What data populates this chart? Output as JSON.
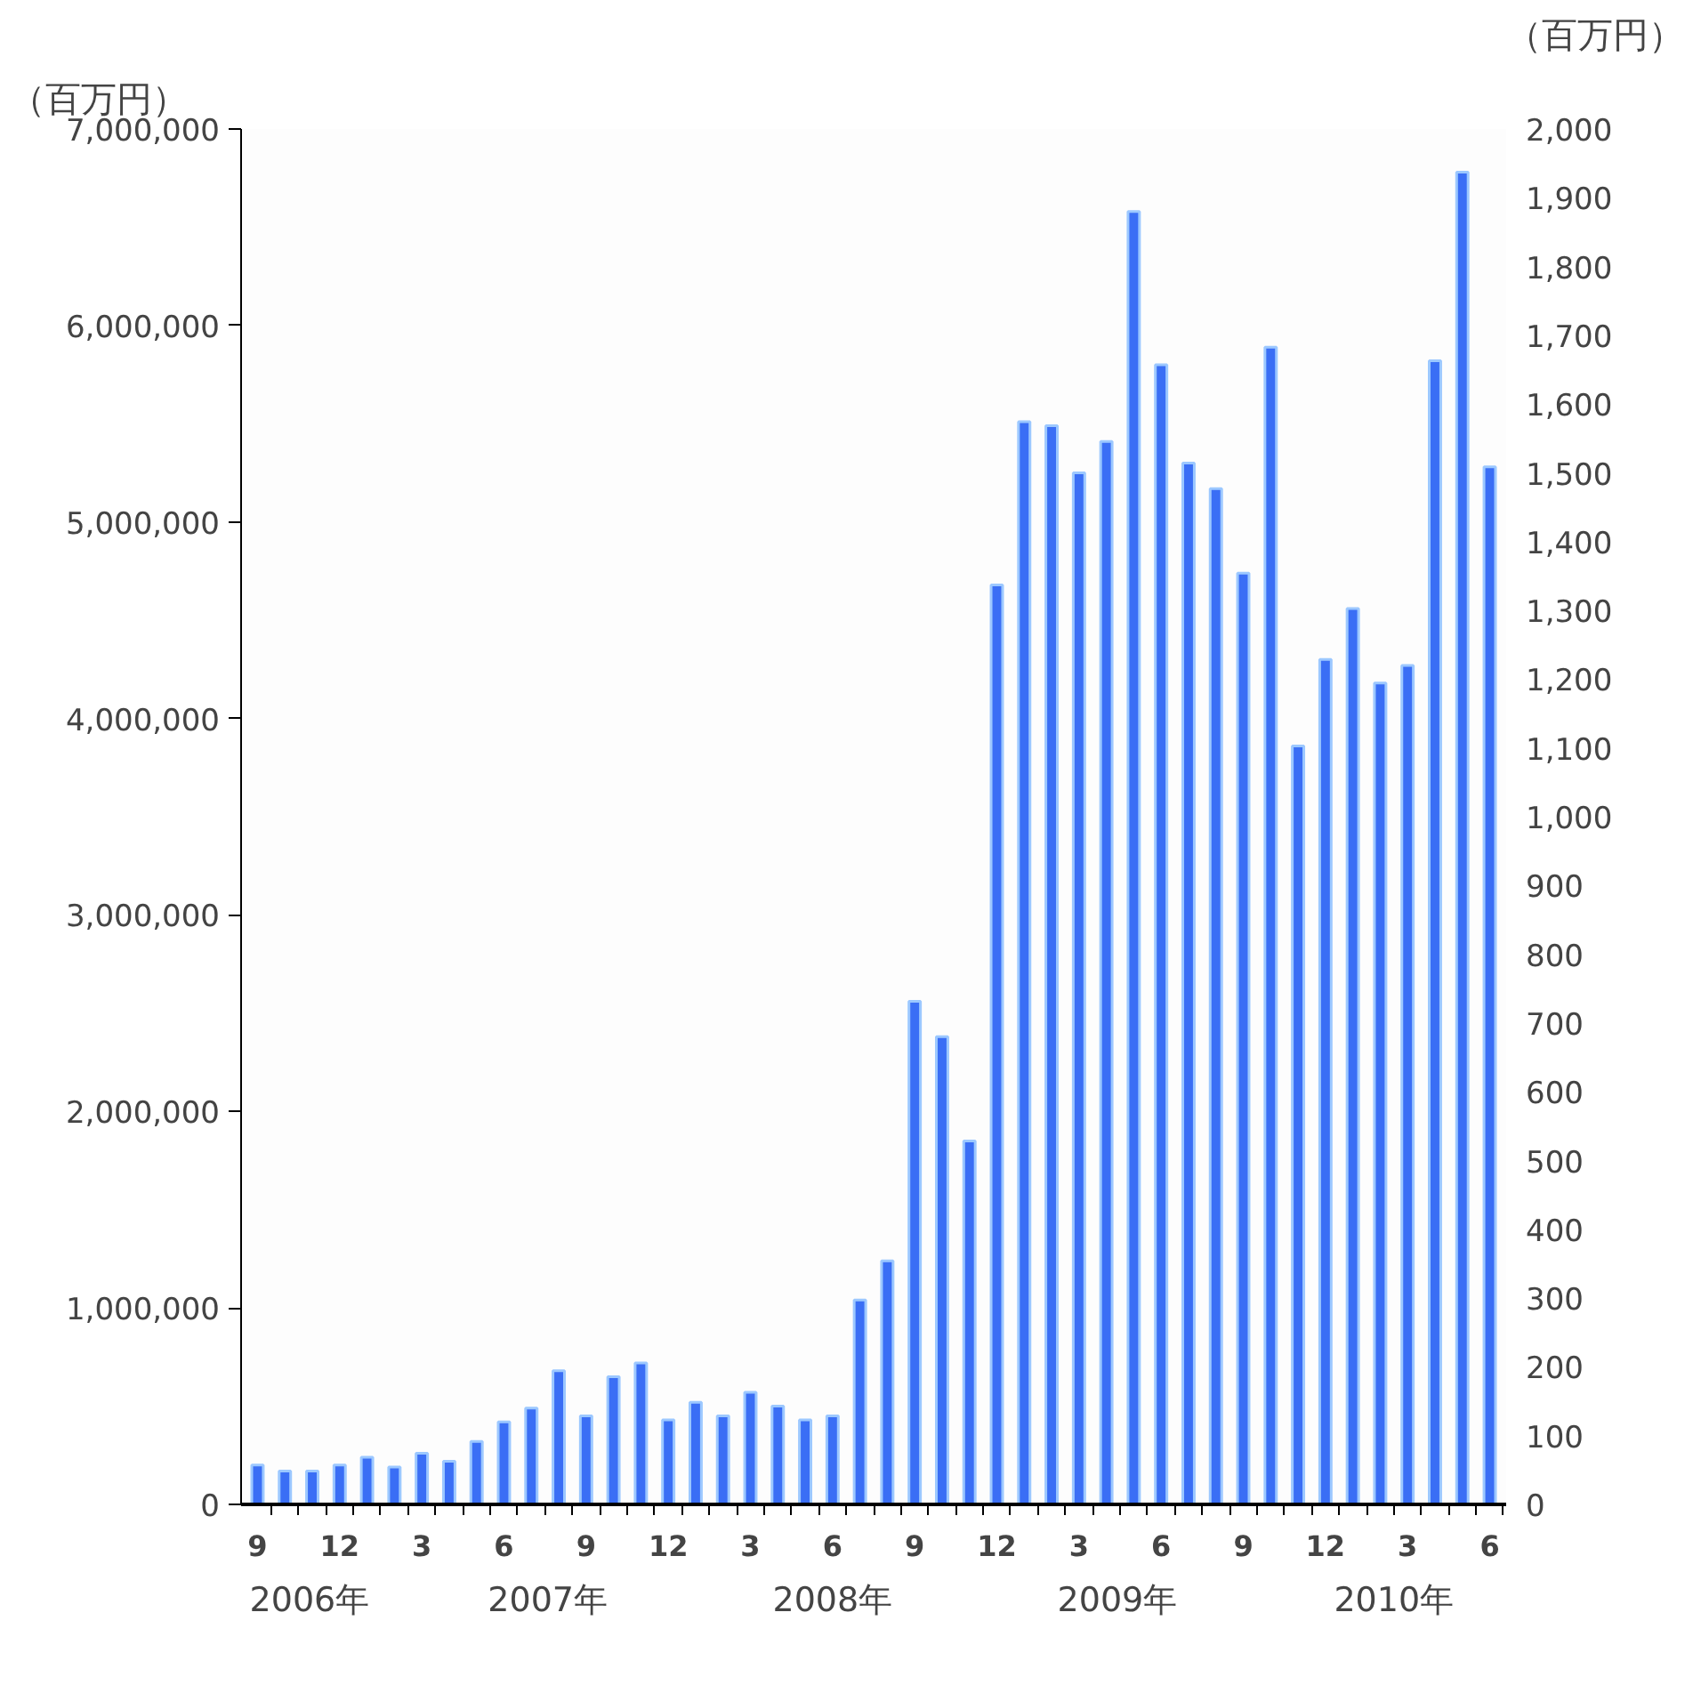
{
  "chart_data": {
    "type": "bar",
    "ylabel": "（百万円）",
    "y2label": "（百万円）",
    "categories": [
      "9",
      null,
      null,
      "12",
      null,
      null,
      "3",
      null,
      null,
      "6",
      null,
      null,
      "9",
      null,
      null,
      "12",
      null,
      null,
      "3",
      null,
      null,
      "6",
      null,
      null,
      "9",
      null,
      null,
      "12",
      null,
      null,
      "3",
      null,
      null,
      "6",
      null,
      null,
      "9",
      null,
      null,
      "12",
      null,
      null,
      "3",
      null,
      null,
      "6"
    ],
    "series": [
      {
        "color": "#3a6ef5",
        "values": [
          200000,
          170000,
          170000,
          200000,
          240000,
          190000,
          260000,
          220000,
          320000,
          420000,
          490000,
          680000,
          450000,
          650000,
          720000,
          430000,
          520000,
          450000,
          570000,
          500000,
          430000,
          450000,
          1040000,
          1240000,
          2560000,
          2380000,
          1850000,
          4680000,
          5510000,
          5490000,
          5250000,
          5410000,
          6580000,
          5800000,
          5300000,
          5170000,
          4740000,
          5890000,
          3860000,
          4300000,
          4560000,
          4180000,
          4270000,
          5820000,
          6780000,
          5280000
        ]
      }
    ],
    "ylim": [
      0,
      7000000
    ],
    "yticks": [
      0,
      {
        "value": 1000000,
        "label": "1,000,000"
      },
      {
        "value": 2000000,
        "label": "2,000,000"
      },
      {
        "value": 3000000,
        "label": "3,000,000"
      },
      {
        "value": 4000000,
        "label": "4,000,000"
      },
      {
        "value": 5000000,
        "label": "5,000,000"
      },
      {
        "value": 6000000,
        "label": "6,000,000"
      },
      {
        "value": 7000000,
        "label": "7,000,000"
      }
    ],
    "y2lim": [
      0,
      2000
    ],
    "y2ticks": [
      0,
      100,
      200,
      300,
      400,
      500,
      600,
      700,
      800,
      900,
      {
        "value": 1000,
        "label": "1,000"
      },
      {
        "value": 1100,
        "label": "1,100"
      },
      {
        "value": 1200,
        "label": "1,200"
      },
      {
        "value": 1300,
        "label": "1,300"
      },
      {
        "value": 1400,
        "label": "1,400"
      },
      {
        "value": 1500,
        "label": "1,500"
      },
      {
        "value": 1600,
        "label": "1,600"
      },
      {
        "value": 1700,
        "label": "1,700"
      },
      {
        "value": 1800,
        "label": "1,800"
      },
      {
        "value": 1900,
        "label": "1,900"
      },
      {
        "value": 2000,
        "label": "2,000"
      }
    ],
    "annotations": [
      "2006年",
      "2007年",
      "2008年",
      "2009年",
      "2010年"
    ]
  }
}
